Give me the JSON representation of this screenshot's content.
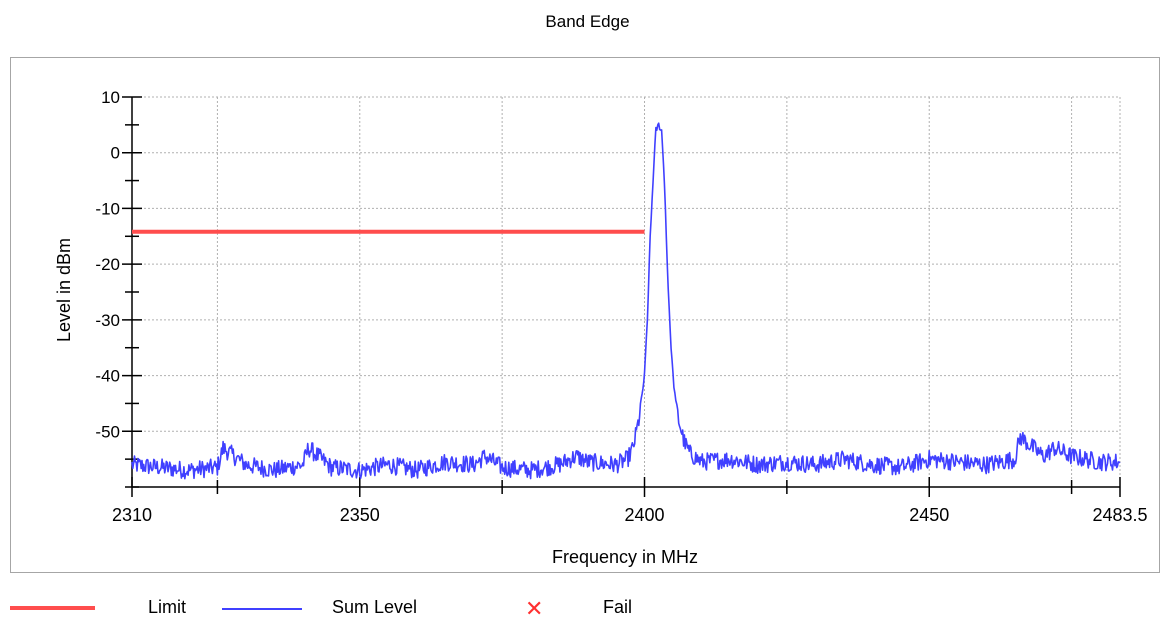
{
  "chart_data": {
    "type": "line",
    "title": "Band Edge",
    "xlabel": "Frequency in MHz",
    "ylabel": "Level in dBm",
    "xlim": [
      2310,
      2483.5
    ],
    "ylim": [
      -60,
      10
    ],
    "x_tick_labels": [
      "2310",
      "2350",
      "2400",
      "2450",
      "2483.5"
    ],
    "x_tick_values": [
      2310,
      2350,
      2400,
      2450,
      2483.5
    ],
    "x_minor_ticks": [
      2325,
      2375,
      2425,
      2475
    ],
    "y_tick_labels": [
      "10",
      "0",
      "-10",
      "-20",
      "-30",
      "-40",
      "-50"
    ],
    "y_tick_values": [
      10,
      0,
      -10,
      -20,
      -30,
      -40,
      -50
    ],
    "grid": true,
    "legend_position": "bottom",
    "series": [
      {
        "name": "Limit",
        "color": "#ff4d4d",
        "x": [
          2310,
          2400
        ],
        "y": [
          -14.2,
          -14.2
        ]
      },
      {
        "name": "Sum Level",
        "color": "#4040ff",
        "x": [
          2310,
          2315,
          2320,
          2325,
          2326,
          2330,
          2335,
          2340,
          2341,
          2345,
          2350,
          2355,
          2360,
          2365,
          2370,
          2372,
          2375,
          2380,
          2385,
          2388,
          2390,
          2395,
          2397,
          2398,
          2399,
          2400,
          2400.5,
          2401,
          2401.5,
          2402,
          2402.5,
          2403,
          2403.5,
          2404,
          2404.5,
          2405,
          2405.5,
          2406,
          2407,
          2408,
          2410,
          2415,
          2420,
          2425,
          2430,
          2435,
          2440,
          2445,
          2450,
          2455,
          2460,
          2465,
          2466,
          2470,
          2472,
          2475,
          2480,
          2483.5
        ],
        "y": [
          -56,
          -56.5,
          -57,
          -56.5,
          -53,
          -56,
          -57,
          -56,
          -53,
          -56.5,
          -57,
          -56,
          -57,
          -55.5,
          -56,
          -54.5,
          -56.5,
          -57,
          -56,
          -54.5,
          -55.5,
          -56,
          -55,
          -53,
          -48,
          -40,
          -30,
          -15,
          -5,
          4,
          5,
          4,
          -5,
          -20,
          -32,
          -40,
          -45,
          -48,
          -52,
          -54,
          -55.5,
          -55,
          -56,
          -55.5,
          -56,
          -55,
          -56,
          -56.5,
          -55,
          -55.5,
          -56,
          -55,
          -51,
          -54.5,
          -53,
          -54.5,
          -55.5,
          -55.5
        ]
      }
    ]
  },
  "legend": {
    "items": [
      {
        "label": "Limit",
        "color": "#ff4d4d"
      },
      {
        "label": "Sum Level",
        "color": "#4040ff"
      },
      {
        "label": "Fail",
        "color": "#ff3030",
        "icon": "cross-icon"
      }
    ]
  }
}
